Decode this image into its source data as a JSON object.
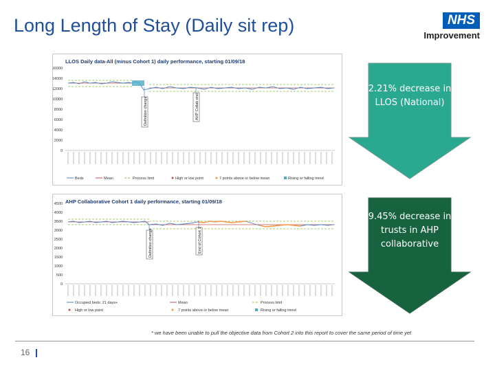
{
  "title": "Long Length of Stay (Daily sit rep)",
  "logo": {
    "badge": "NHS",
    "name": "Improvement"
  },
  "chart1": {
    "title": "LLOS Daily data-All (minus Cohort 1) daily performance, starting 01/09/18",
    "yticks": [
      "16000",
      "14000",
      "12000",
      "10000",
      "8000",
      "6000",
      "4000",
      "2000",
      "0"
    ],
    "annotations": [
      "Definition change",
      "AHP Collab end"
    ],
    "legend": [
      "Beds",
      "Mean",
      "Process limit",
      "High or low point",
      "7 points above or below mean",
      "Rising or falling trend"
    ]
  },
  "chart2": {
    "title": "AHP Collaborative Cohort 1 daily performance, starting 01/09/18",
    "yticks": [
      "4500",
      "4000",
      "3500",
      "3000",
      "2500",
      "2000",
      "1500",
      "1000",
      "500",
      "0"
    ],
    "annotations": [
      "Definition change",
      "End of Cohort 1"
    ],
    "legend": [
      "Occupied beds: 21 days+",
      "Mean",
      "Process limit",
      "High or low point",
      "7 points above or below mean",
      "Rising or falling trend"
    ]
  },
  "callouts": {
    "national": "2.21% decrease in LLOS (National)",
    "ahp": "9.45% decrease in trusts in AHP collaborative"
  },
  "colors": {
    "arrow_light": "#2aa890",
    "arrow_dark": "#17633f",
    "title": "#1f4e9a"
  },
  "footnote": "* we have been unable to pull the objective data from Cohort 2 into this report to cover the same period of time yet",
  "page_number": "16"
}
